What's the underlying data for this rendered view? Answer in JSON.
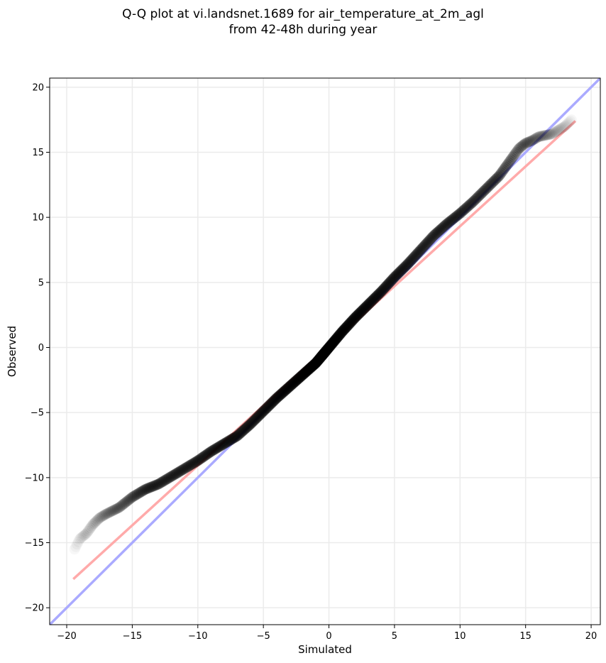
{
  "chart_data": {
    "type": "scatter",
    "title_line1": "Q-Q plot at vi.landsnet.1689 for air_temperature_at_2m_agl",
    "title_line2": "from 42-48h during year",
    "xlabel": "Simulated",
    "ylabel": "Observed",
    "xlim": [
      -21.3,
      20.7
    ],
    "ylim": [
      -21.3,
      20.7
    ],
    "xticks": [
      -20,
      -15,
      -10,
      -5,
      0,
      5,
      10,
      15,
      20
    ],
    "yticks": [
      -20,
      -15,
      -10,
      -5,
      0,
      5,
      10,
      15,
      20
    ],
    "xtick_labels": [
      "−20",
      "−15",
      "−10",
      "−5",
      "0",
      "5",
      "10",
      "15",
      "20"
    ],
    "ytick_labels": [
      "−20",
      "−15",
      "−10",
      "−5",
      "0",
      "5",
      "10",
      "15",
      "20"
    ],
    "grid": true,
    "colors": {
      "points": "#000000",
      "identity_line": "#aaaaff",
      "fit_line": "#ffaaaa",
      "grid": "#ebebeb"
    },
    "identity_line": {
      "x": [
        -21.3,
        20.7
      ],
      "y": [
        -21.3,
        20.7
      ]
    },
    "fit_line": {
      "x": [
        -19.5,
        18.8
      ],
      "y": [
        -17.8,
        17.4
      ]
    },
    "quantile_curve": {
      "x": [
        -19.4,
        -19.0,
        -18.5,
        -18.0,
        -17.5,
        -17.0,
        -16.0,
        -15.0,
        -14.0,
        -13.0,
        -12.0,
        -11.0,
        -10.0,
        -9.0,
        -8.0,
        -7.0,
        -6.0,
        -5.0,
        -4.0,
        -3.0,
        -2.0,
        -1.0,
        0.0,
        1.0,
        2.0,
        3.0,
        4.0,
        5.0,
        6.0,
        7.0,
        8.0,
        9.0,
        10.0,
        11.0,
        12.0,
        13.0,
        13.5,
        14.0,
        14.5,
        15.0,
        15.5,
        16.0,
        17.0,
        17.5,
        18.0,
        18.5
      ],
      "y": [
        -15.5,
        -14.7,
        -14.3,
        -13.6,
        -13.1,
        -12.8,
        -12.3,
        -11.5,
        -10.9,
        -10.5,
        -9.9,
        -9.3,
        -8.7,
        -8.0,
        -7.4,
        -6.8,
        -5.9,
        -4.9,
        -3.9,
        -3.0,
        -2.1,
        -1.2,
        0.0,
        1.2,
        2.3,
        3.3,
        4.3,
        5.4,
        6.4,
        7.5,
        8.6,
        9.5,
        10.3,
        11.2,
        12.2,
        13.2,
        13.9,
        14.6,
        15.3,
        15.7,
        15.9,
        16.2,
        16.4,
        16.7,
        17.0,
        17.5
      ]
    }
  }
}
